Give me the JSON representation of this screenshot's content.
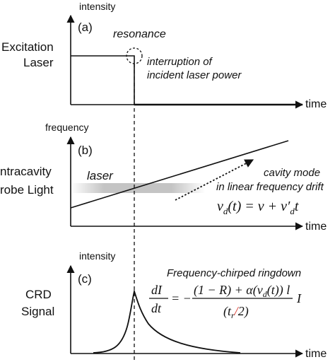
{
  "panel_a": {
    "label": "(a)",
    "y_axis_label": "intensity",
    "x_axis_label": "time",
    "row_label_line1": "Excitation",
    "row_label_line2": "Laser",
    "resonance_label": "resonance",
    "annotation_line1": "interruption of",
    "annotation_line2": "incident laser power"
  },
  "panel_b": {
    "label": "(b)",
    "y_axis_label": "frequency",
    "x_axis_label": "time",
    "row_label_line1": "ntracavity",
    "row_label_line2": "robe Light",
    "laser_label": "laser",
    "mode_label_line1": "cavity mode",
    "mode_label_line2": "in linear frequency drift",
    "equation_lhs": "ν",
    "equation_lhs_sub": "d",
    "equation_rhs": "(t) = ν + ν′",
    "equation_rhs_sub": "d",
    "equation_tail": "t"
  },
  "panel_c": {
    "label": "(c)",
    "y_axis_label": "intensity",
    "x_axis_label": "time",
    "row_label_line1": "CRD",
    "row_label_line2": "Signal",
    "title": "Frequency-chirped ringdown",
    "eq_numerator_left": "dI",
    "eq_denominator_left": "dt",
    "eq_equals": "= −",
    "eq_numerator": "(1 − R) + α(ν",
    "eq_numerator_sub": "d",
    "eq_numerator_tail": "(t)) l",
    "eq_denominator": "(t",
    "eq_denominator_sub": "r",
    "eq_denominator_slash": "/",
    "eq_denominator_tail": "2)",
    "eq_trailing": "I"
  },
  "colors": {
    "ink": "#111111",
    "highlight": "#d9362b",
    "laser_band": "#bdbdbd"
  }
}
